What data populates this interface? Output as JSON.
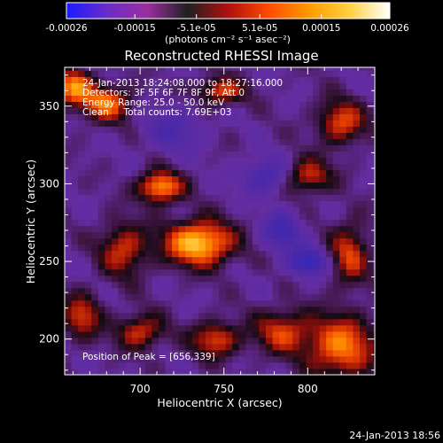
{
  "chart_data": {
    "type": "heatmap",
    "title": "Reconstructed RHESSI Image",
    "xlabel": "Heliocentric X (arcsec)",
    "ylabel": "Heliocentric Y (arcsec)",
    "xlim": [
      655,
      840
    ],
    "ylim": [
      177,
      375
    ],
    "x_ticks": [
      700,
      750,
      800
    ],
    "y_ticks": [
      200,
      250,
      300,
      350
    ],
    "colorbar": {
      "ticks": [
        "-0.00026",
        "-0.00015",
        "-5.1e-05",
        "5.1e-05",
        "0.00015",
        "0.00026"
      ],
      "tick_values": [
        -0.00026,
        -0.00015,
        -5.1e-05,
        5.1e-05,
        0.00015,
        0.00026
      ],
      "range": [
        -0.00026,
        0.00026
      ],
      "unit_label": "(photons cm⁻² s⁻¹ asec⁻²)",
      "colors": [
        "#1a1aff",
        "#6a2cc8",
        "#9a2ea0",
        "#202020",
        "#b01010",
        "#ff4a00",
        "#ff9a00",
        "#ffd040",
        "#ffffff"
      ]
    },
    "annotations": [
      "24-Jan-2013 18:24:08.000 to 18:27:16.000",
      "Detectors: 3F 5F 6F 7F 8F 9F, Att 0",
      "Energy Range: 25.0 - 50.0 keV",
      "Clean     Total counts: 7.69E+03"
    ],
    "peak_label": "Position of Peak = [656,339]",
    "peak": [
      656,
      339
    ],
    "sources": [
      {
        "x": 735,
        "y": 262,
        "sx": 14,
        "sy": 10,
        "amp": 1.0
      },
      {
        "x": 712,
        "y": 298,
        "sx": 9,
        "sy": 7,
        "amp": 0.85
      },
      {
        "x": 690,
        "y": 258,
        "sx": 10,
        "sy": 12,
        "amp": 0.55
      },
      {
        "x": 680,
        "y": 352,
        "sx": 10,
        "sy": 8,
        "amp": 0.7
      },
      {
        "x": 660,
        "y": 362,
        "sx": 8,
        "sy": 8,
        "amp": 0.75
      },
      {
        "x": 748,
        "y": 360,
        "sx": 10,
        "sy": 6,
        "amp": 0.6
      },
      {
        "x": 665,
        "y": 215,
        "sx": 8,
        "sy": 10,
        "amp": 0.55
      },
      {
        "x": 700,
        "y": 205,
        "sx": 10,
        "sy": 8,
        "amp": 0.55
      },
      {
        "x": 745,
        "y": 200,
        "sx": 10,
        "sy": 8,
        "amp": 0.6
      },
      {
        "x": 785,
        "y": 205,
        "sx": 12,
        "sy": 10,
        "amp": 0.55
      },
      {
        "x": 820,
        "y": 195,
        "sx": 14,
        "sy": 14,
        "amp": 0.75
      },
      {
        "x": 825,
        "y": 255,
        "sx": 8,
        "sy": 14,
        "amp": 0.55
      },
      {
        "x": 800,
        "y": 305,
        "sx": 10,
        "sy": 8,
        "amp": 0.55
      },
      {
        "x": 820,
        "y": 340,
        "sx": 10,
        "sy": 10,
        "amp": 0.6
      },
      {
        "x": 785,
        "y": 270,
        "sx": 8,
        "sy": 8,
        "amp": -0.5
      },
      {
        "x": 775,
        "y": 305,
        "sx": 10,
        "sy": 8,
        "amp": -0.45
      },
      {
        "x": 800,
        "y": 250,
        "sx": 8,
        "sy": 6,
        "amp": -0.65
      },
      {
        "x": 720,
        "y": 335,
        "sx": 12,
        "sy": 10,
        "amp": -0.35
      }
    ]
  },
  "footer": {
    "timestamp": "24-Jan-2013 18:56"
  }
}
